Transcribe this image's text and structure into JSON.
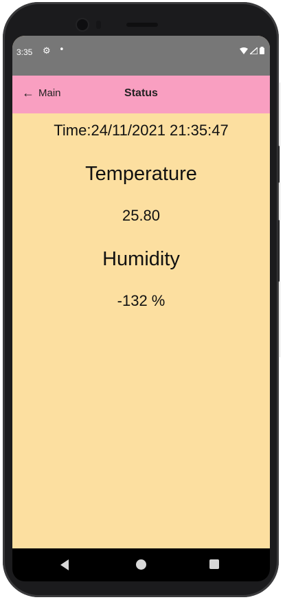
{
  "status_bar": {
    "time": "3:35",
    "icons": [
      "settings-icon",
      "notification-dot-icon",
      "wifi-icon",
      "signal-icon",
      "battery-icon"
    ]
  },
  "app_bar": {
    "back_label": "Main",
    "title": "Status"
  },
  "content": {
    "time_text": "Time:24/11/2021 21:35:47",
    "temperature_label": "Temperature",
    "temperature_value": "25.80",
    "humidity_label": "Humidity",
    "humidity_value": "-132 %"
  },
  "nav_bar": {
    "icons": [
      "nav-back-icon",
      "nav-home-icon",
      "nav-recents-icon"
    ]
  },
  "colors": {
    "app_bar": "#f99fc1",
    "background": "#fcdfa0",
    "status_bar": "#777777"
  }
}
